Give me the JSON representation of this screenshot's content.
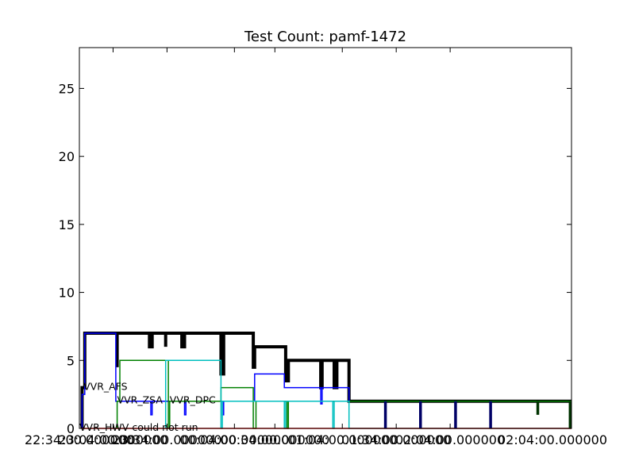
{
  "chart_data": {
    "type": "line",
    "title": "Test Count: pamf-1472",
    "xlabel": "",
    "ylabel": "",
    "ylim": [
      0,
      28
    ],
    "xlim": [
      0,
      365
    ],
    "grid": false,
    "yticks": [
      0,
      5,
      10,
      15,
      20,
      25
    ],
    "xticks": [
      {
        "x": 0,
        "label": "22:34:00.000000"
      },
      {
        "x": 25,
        "label": "23:04:00.000000"
      },
      {
        "x": 65,
        "label": "23:34:00.000000"
      },
      {
        "x": 115,
        "label": "00:04:00.000000"
      },
      {
        "x": 145,
        "label": "00:34:00.000000"
      },
      {
        "x": 195,
        "label": "01:04:00.000000"
      },
      {
        "x": 235,
        "label": "01:34:00.000000"
      },
      {
        "x": 275,
        "label": "02:04:00.000000"
      },
      {
        "x": 365,
        "label": "02:04:00.000000"
      }
    ],
    "series": [
      {
        "color": "#000000",
        "width": 4.0,
        "points": [
          [
            2,
            0
          ],
          [
            2,
            3
          ],
          [
            4,
            3
          ],
          [
            4,
            7
          ],
          [
            28,
            7
          ],
          [
            28,
            4.5
          ],
          [
            28,
            7
          ],
          [
            52,
            7
          ],
          [
            52,
            6
          ],
          [
            54,
            6
          ],
          [
            54,
            7
          ],
          [
            64,
            7
          ],
          [
            64,
            6
          ],
          [
            64,
            7
          ],
          [
            76,
            7
          ],
          [
            76,
            6
          ],
          [
            78,
            6
          ],
          [
            78,
            7
          ],
          [
            105,
            7
          ],
          [
            105,
            4
          ],
          [
            107,
            4
          ],
          [
            107,
            7
          ],
          [
            129,
            7
          ],
          [
            129,
            4.5
          ],
          [
            130,
            4.5
          ],
          [
            130,
            6
          ],
          [
            153,
            6
          ],
          [
            153,
            3.5
          ],
          [
            155,
            3.5
          ],
          [
            155,
            5
          ],
          [
            179,
            5
          ],
          [
            179,
            3
          ],
          [
            180,
            3
          ],
          [
            180,
            5
          ],
          [
            189,
            5
          ],
          [
            189,
            3
          ],
          [
            191,
            3
          ],
          [
            191,
            5
          ],
          [
            200,
            5
          ],
          [
            200,
            2
          ],
          [
            365,
            2
          ]
        ]
      },
      {
        "color": "#0000ff",
        "width": 1.5,
        "points": [
          [
            2,
            0
          ],
          [
            2,
            2.5
          ],
          [
            4,
            2.5
          ],
          [
            4,
            7
          ],
          [
            27,
            7
          ],
          [
            27,
            2
          ],
          [
            53,
            2
          ],
          [
            53,
            1
          ],
          [
            54,
            1
          ],
          [
            54,
            2
          ],
          [
            78,
            2
          ],
          [
            78,
            1
          ],
          [
            79,
            1
          ],
          [
            79,
            2
          ],
          [
            106,
            2
          ],
          [
            106,
            1
          ],
          [
            107,
            1
          ],
          [
            107,
            2
          ],
          [
            130,
            2
          ],
          [
            130,
            4
          ],
          [
            152,
            4
          ],
          [
            152,
            3
          ],
          [
            179,
            3
          ],
          [
            179,
            1.8
          ],
          [
            180,
            1.8
          ],
          [
            180,
            3
          ],
          [
            200,
            3
          ],
          [
            200,
            2
          ],
          [
            365,
            2
          ]
        ]
      },
      {
        "color": "#008000",
        "width": 1.5,
        "points": [
          [
            28,
            0
          ],
          [
            28,
            2
          ],
          [
            30,
            2
          ],
          [
            30,
            5
          ],
          [
            66,
            5
          ],
          [
            66,
            0
          ],
          [
            67,
            0
          ],
          [
            67,
            2
          ],
          [
            105,
            2
          ],
          [
            105,
            3
          ],
          [
            129,
            3
          ],
          [
            129,
            0
          ],
          [
            131,
            0
          ],
          [
            131,
            2
          ],
          [
            154,
            2
          ],
          [
            154,
            0
          ],
          [
            155,
            0
          ],
          [
            155,
            2
          ],
          [
            365,
            2
          ]
        ]
      },
      {
        "color": "#00bfbf",
        "width": 1.5,
        "points": [
          [
            64,
            0
          ],
          [
            64,
            5
          ],
          [
            105,
            5
          ],
          [
            105,
            0
          ],
          [
            106,
            0
          ],
          [
            106,
            2
          ],
          [
            152,
            2
          ],
          [
            152,
            0
          ],
          [
            153,
            0
          ],
          [
            153,
            2
          ],
          [
            188,
            2
          ],
          [
            188,
            0
          ],
          [
            189,
            0
          ],
          [
            189,
            2
          ],
          [
            200,
            2
          ],
          [
            200,
            0
          ],
          [
            365,
            0
          ]
        ]
      },
      {
        "color": "#ff0000",
        "width": 1.5,
        "points": [
          [
            2,
            0
          ],
          [
            365,
            0
          ]
        ]
      }
    ],
    "thick_drops": [
      {
        "x": 227,
        "y0": 2,
        "y1": 0,
        "color": "#000066"
      },
      {
        "x": 253,
        "y0": 2,
        "y1": 0,
        "color": "#000066"
      },
      {
        "x": 279,
        "y0": 2,
        "y1": 0,
        "color": "#000066"
      },
      {
        "x": 305,
        "y0": 2,
        "y1": 0,
        "color": "#000066"
      },
      {
        "x": 340,
        "y0": 2,
        "y1": 1,
        "color": "#003300"
      },
      {
        "x": 364,
        "y0": 2,
        "y1": 0,
        "color": "#003300"
      }
    ],
    "annotations": [
      {
        "text": "VVR_AFS",
        "x": 3,
        "y": 3
      },
      {
        "text": "VVR_ZSA",
        "x": 28,
        "y": 2
      },
      {
        "text": "VVR_DPC",
        "x": 67,
        "y": 2
      },
      {
        "text": "VVR_HWV could not run",
        "x": 0,
        "y": 0
      }
    ]
  }
}
